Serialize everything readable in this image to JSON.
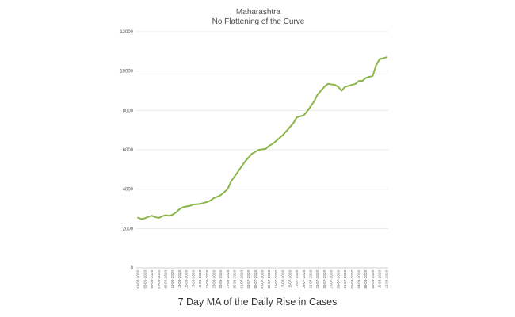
{
  "chart_data": {
    "type": "line",
    "title": "Maharashtra",
    "subtitle": "No Flattening of the Curve",
    "xlabel": "",
    "ylabel": "",
    "caption": "7 Day MA of the Daily Rise in Cases",
    "ylim": [
      0,
      12000
    ],
    "yticks": [
      0,
      2000,
      4000,
      6000,
      8000,
      10000,
      12000
    ],
    "grid": true,
    "legend": "none",
    "color": "#8ab547",
    "x": [
      "01-06-2020",
      "02-06-2020",
      "03-06-2020",
      "04-06-2020",
      "05-06-2020",
      "06-06-2020",
      "07-06-2020",
      "08-06-2020",
      "09-06-2020",
      "10-06-2020",
      "11-06-2020",
      "12-06-2020",
      "13-06-2020",
      "14-06-2020",
      "15-06-2020",
      "16-06-2020",
      "17-06-2020",
      "18-06-2020",
      "19-06-2020",
      "20-06-2020",
      "21-06-2020",
      "22-06-2020",
      "23-06-2020",
      "24-06-2020",
      "25-06-2020",
      "26-06-2020",
      "27-06-2020",
      "28-06-2020",
      "29-06-2020",
      "30-06-2020",
      "01-07-2020",
      "02-07-2020",
      "03-07-2020",
      "04-07-2020",
      "05-07-2020",
      "06-07-2020",
      "07-07-2020",
      "08-07-2020",
      "09-07-2020",
      "10-07-2020",
      "11-07-2020",
      "12-07-2020",
      "13-07-2020",
      "14-07-2020",
      "15-07-2020",
      "16-07-2020",
      "17-07-2020",
      "18-07-2020",
      "19-07-2020",
      "20-07-2020",
      "21-07-2020",
      "22-07-2020",
      "23-07-2020",
      "24-07-2020",
      "25-07-2020",
      "26-07-2020",
      "27-07-2020",
      "28-07-2020",
      "29-07-2020",
      "30-07-2020",
      "31-07-2020",
      "01-08-2020",
      "02-08-2020",
      "03-08-2020",
      "04-08-2020",
      "05-08-2020",
      "06-08-2020",
      "07-08-2020",
      "08-08-2020",
      "09-08-2020",
      "10-08-2020",
      "11-08-2020",
      "12-08-2020"
    ],
    "xticks": [
      "01-06-2020",
      "03-06-2020",
      "05-06-2020",
      "07-06-2020",
      "09-06-2020",
      "11-06-2020",
      "13-06-2020",
      "15-06-2020",
      "17-06-2020",
      "19-06-2020",
      "21-06-2020",
      "23-06-2020",
      "25-06-2020",
      "27-06-2020",
      "29-06-2020",
      "01-07-2020",
      "03-07-2020",
      "05-07-2020",
      "07-07-2020",
      "09-07-2020",
      "11-07-2020",
      "13-07-2020",
      "15-07-2020",
      "17-07-2020",
      "19-07-2020",
      "21-07-2020",
      "23-07-2020",
      "25-07-2020",
      "27-07-2020",
      "29-07-2020",
      "31-07-2020",
      "02-08-2020",
      "04-08-2020",
      "06-08-2020",
      "08-08-2020",
      "10-08-2020",
      "12-08-2020"
    ],
    "series": [
      {
        "values": [
          2550,
          2480,
          2520,
          2600,
          2650,
          2580,
          2540,
          2620,
          2680,
          2650,
          2700,
          2820,
          2980,
          3080,
          3120,
          3150,
          3220,
          3230,
          3250,
          3300,
          3350,
          3420,
          3550,
          3620,
          3700,
          3850,
          4020,
          4400,
          4650,
          4900,
          5150,
          5400,
          5600,
          5800,
          5900,
          6000,
          6020,
          6050,
          6200,
          6300,
          6450,
          6600,
          6750,
          6950,
          7150,
          7350,
          7650,
          7700,
          7750,
          7950,
          8200,
          8450,
          8800,
          9000,
          9200,
          9350,
          9320,
          9300,
          9200,
          9000,
          9200,
          9250,
          9300,
          9350,
          9500,
          9500,
          9650,
          9700,
          9750,
          10300,
          10600,
          10650,
          10700
        ]
      }
    ]
  }
}
